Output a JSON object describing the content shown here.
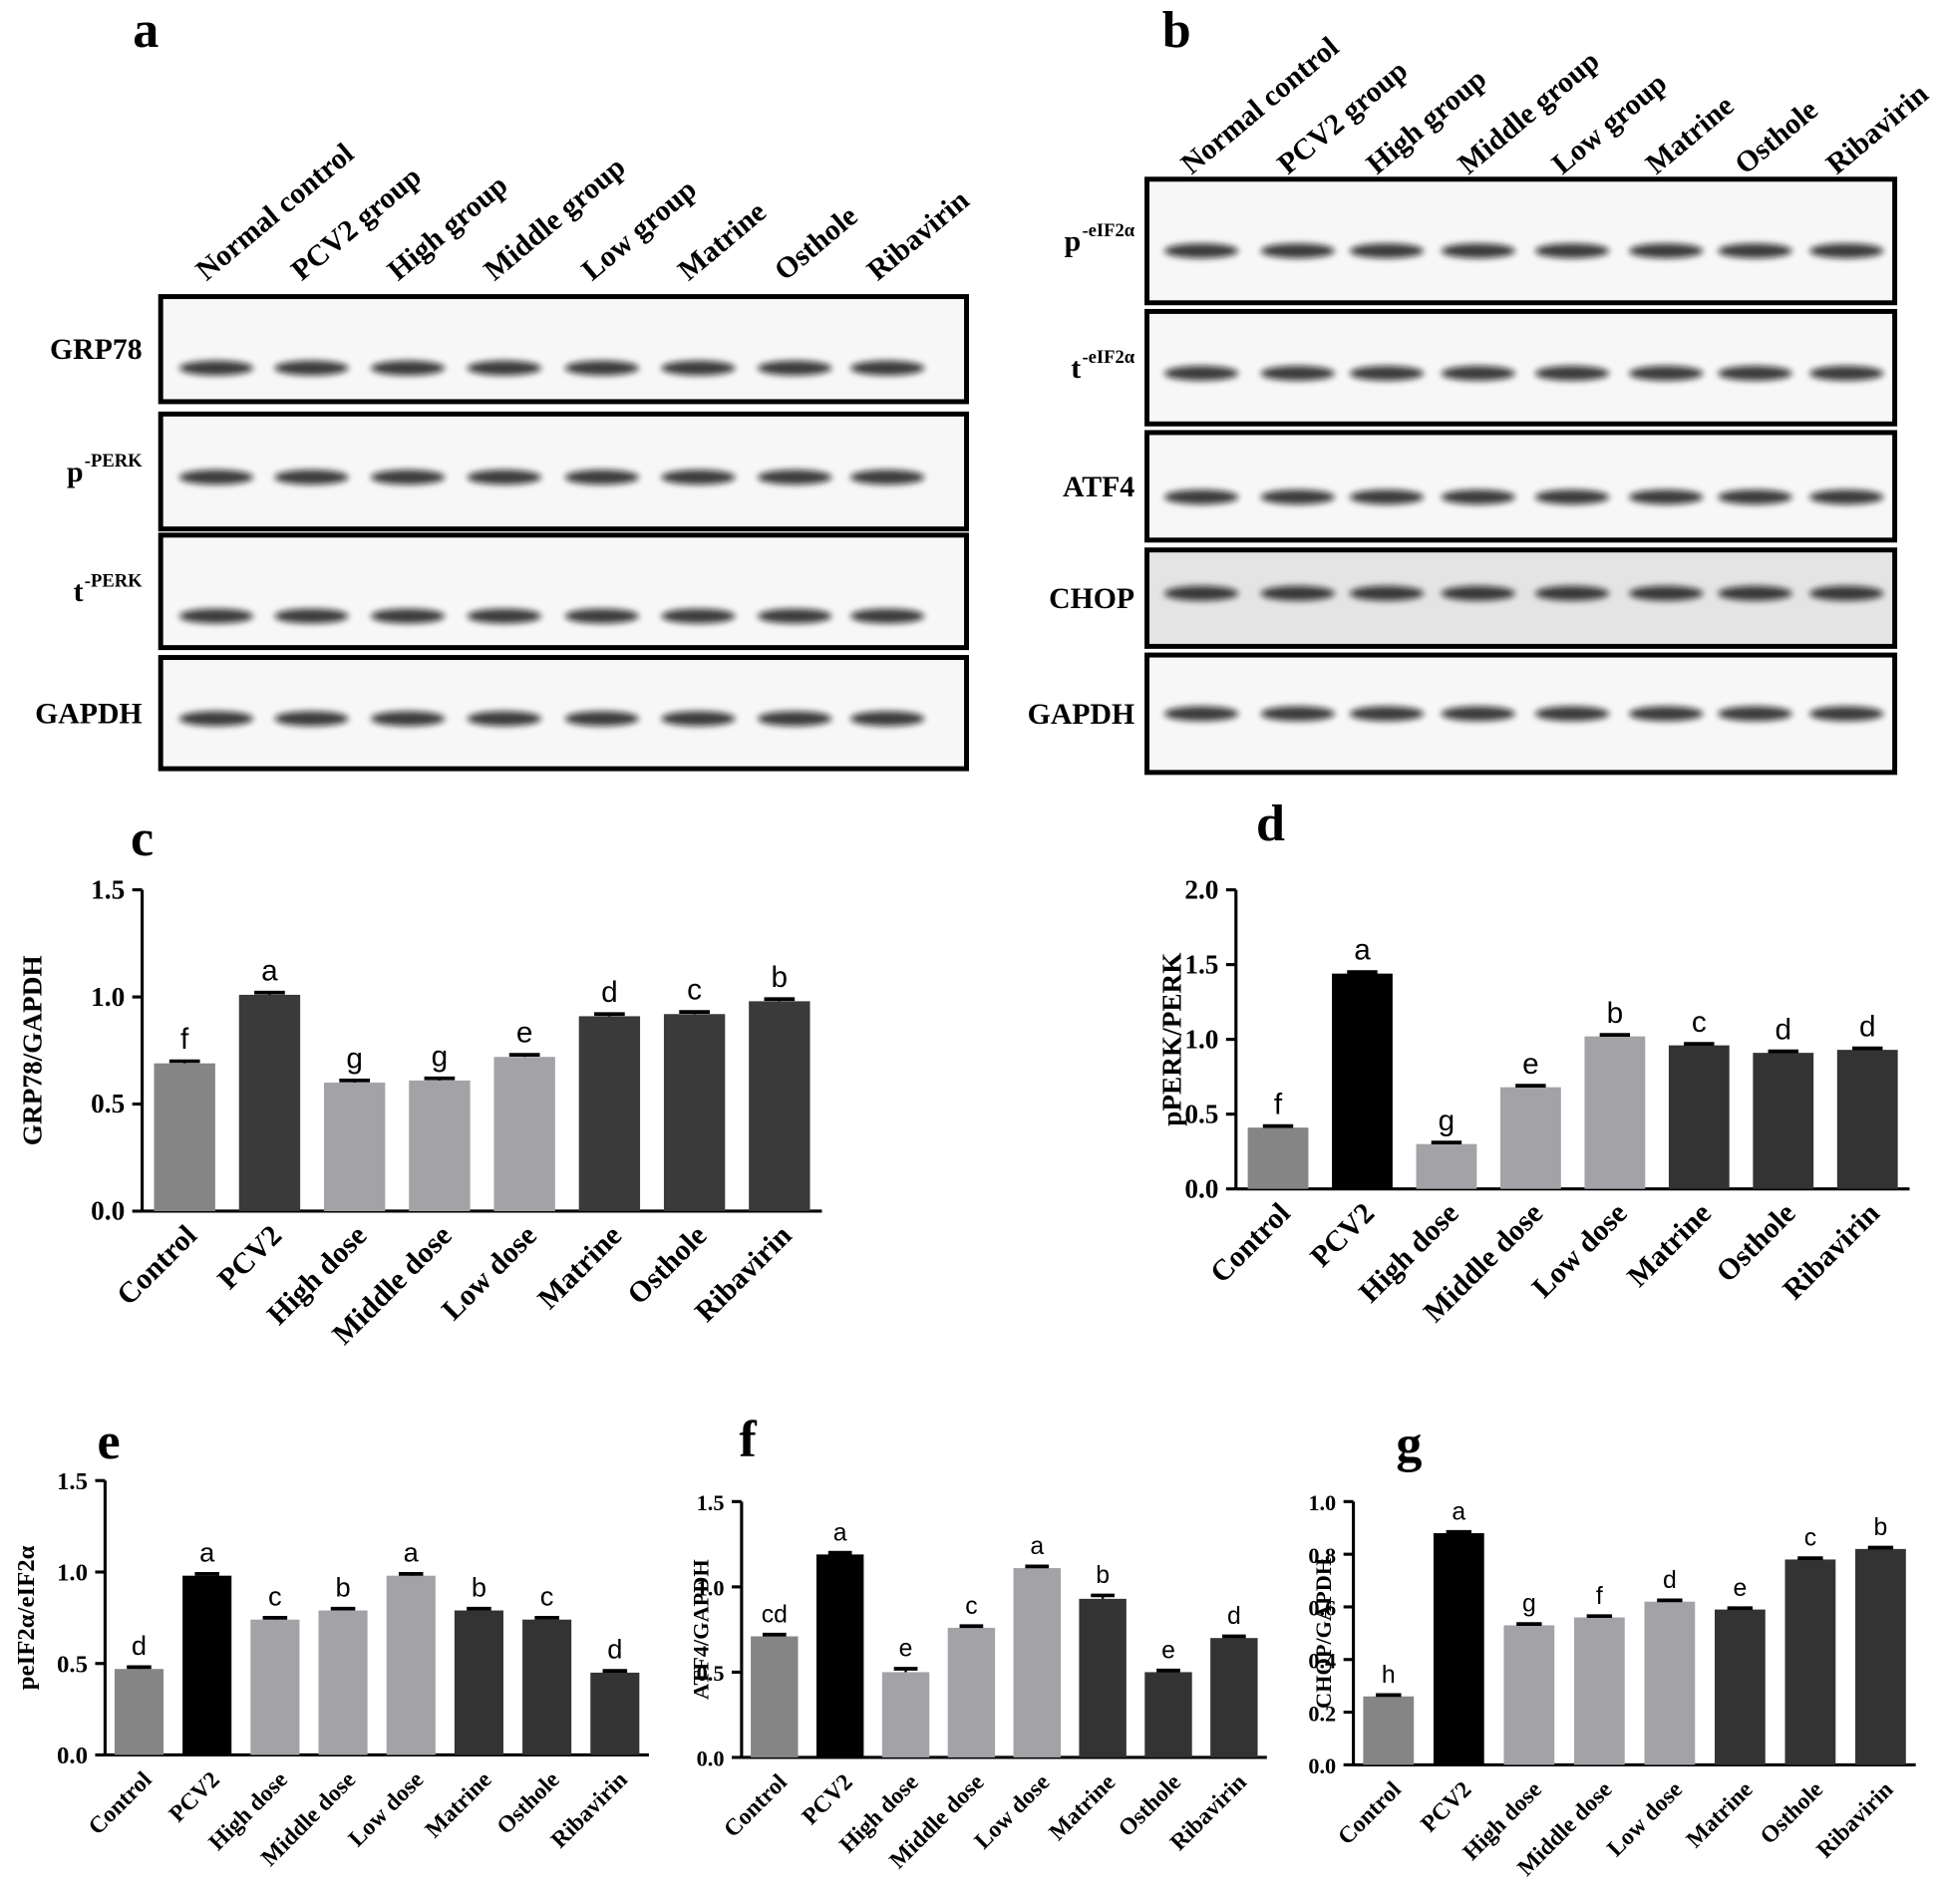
{
  "blots": [
    {
      "panel": "a",
      "lanes": [
        "Normal control",
        "PCV2 group",
        "High group",
        "Middle group",
        "Low group",
        "Matrine",
        "Osthole",
        "Ribavirin"
      ],
      "rows": [
        {
          "label": "GRP78"
        },
        {
          "label": "p",
          "sup": "-PERK"
        },
        {
          "label": "t",
          "sup": "-PERK"
        },
        {
          "label": "GAPDH"
        }
      ]
    },
    {
      "panel": "b",
      "lanes": [
        "Normal control",
        "PCV2 group",
        "High group",
        "Middle group",
        "Low group",
        "Matrine",
        "Osthole",
        "Ribavirin"
      ],
      "rows": [
        {
          "label": "p",
          "sup": "-eIF2α"
        },
        {
          "label": "t",
          "sup": "-eIF2α"
        },
        {
          "label": "ATF4"
        },
        {
          "label": "CHOP"
        },
        {
          "label": "GAPDH"
        }
      ]
    }
  ],
  "chart_data": [
    {
      "type": "bar",
      "panel": "c",
      "ylabel": "GRP78/GAPDH",
      "categories": [
        "Control",
        "PCV2",
        "High dose",
        "Middle dose",
        "Low dose",
        "Matrine",
        "Osthole",
        "Ribavirin"
      ],
      "values": [
        0.69,
        1.01,
        0.6,
        0.61,
        0.72,
        0.91,
        0.92,
        0.98
      ],
      "errors": [
        0.01,
        0.01,
        0.01,
        0.01,
        0.01,
        0.01,
        0.01,
        0.01
      ],
      "annotations": [
        "f",
        "a",
        "g",
        "g",
        "e",
        "d",
        "c",
        "b"
      ],
      "colors": [
        "#858585",
        "#3a3a3a",
        "#a3a3a7",
        "#a3a3a7",
        "#a3a3a7",
        "#3a3a3a",
        "#3a3a3a",
        "#3a3a3a"
      ],
      "ylim": [
        0,
        1.5
      ],
      "yticks": [
        {
          "value": 0,
          "label": "0.0"
        },
        0.5,
        {
          "value": 1,
          "label": "1.0"
        },
        1.5
      ]
    },
    {
      "type": "bar",
      "panel": "d",
      "ylabel": "pPERK/PERK",
      "categories": [
        "Control",
        "PCV2",
        "High dose",
        "Middle dose",
        "Low dose",
        "Matrine",
        "Osthole",
        "Ribavirin"
      ],
      "values": [
        0.41,
        1.44,
        0.3,
        0.68,
        1.02,
        0.96,
        0.91,
        0.93
      ],
      "errors": [
        0.01,
        0.01,
        0.01,
        0.01,
        0.01,
        0.01,
        0.01,
        0.01
      ],
      "annotations": [
        "f",
        "a",
        "g",
        "e",
        "b",
        "c",
        "d",
        "d"
      ],
      "colors": [
        "#858585",
        "#000000",
        "#a3a3a7",
        "#a3a3a7",
        "#a3a3a7",
        "#333333",
        "#333333",
        "#333333"
      ],
      "ylim": [
        0,
        2
      ],
      "yticks": [
        {
          "value": 0,
          "label": "0.0"
        },
        0.5,
        {
          "value": 1,
          "label": "1.0"
        },
        1.5,
        {
          "value": 2,
          "label": "2.0"
        }
      ]
    },
    {
      "type": "bar",
      "panel": "e",
      "ylabel": "peIF2α/eIF2α",
      "categories": [
        "Control",
        "PCV2",
        "High dose",
        "Middle dose",
        "Low dose",
        "Matrine",
        "Osthole",
        "Ribavirin"
      ],
      "values": [
        0.47,
        0.98,
        0.74,
        0.79,
        0.98,
        0.79,
        0.74,
        0.45
      ],
      "errors": [
        0.01,
        0.01,
        0.01,
        0.01,
        0.01,
        0.01,
        0.01,
        0.01
      ],
      "annotations": [
        "d",
        "a",
        "c",
        "b",
        "a",
        "b",
        "c",
        "d"
      ],
      "colors": [
        "#858585",
        "#000000",
        "#a3a3a7",
        "#a3a3a7",
        "#a3a3a7",
        "#333333",
        "#333333",
        "#333333"
      ],
      "ylim": [
        0,
        1.5
      ],
      "yticks": [
        {
          "value": 0,
          "label": "0.0"
        },
        0.5,
        {
          "value": 1,
          "label": "1.0"
        },
        1.5
      ]
    },
    {
      "type": "bar",
      "panel": "f",
      "ylabel": "ATF4/GAPDH",
      "categories": [
        "Control",
        "PCV2",
        "High dose",
        "Middle dose",
        "Low dose",
        "Matrine",
        "Osthole",
        "Ribavirin"
      ],
      "values": [
        0.71,
        1.19,
        0.5,
        0.76,
        1.11,
        0.93,
        0.5,
        0.7
      ],
      "errors": [
        0.01,
        0.01,
        0.02,
        0.01,
        0.01,
        0.02,
        0.01,
        0.01
      ],
      "annotations": [
        "cd",
        "a",
        "e",
        "c",
        "a",
        "b",
        "e",
        "d"
      ],
      "colors": [
        "#858585",
        "#000000",
        "#a3a3a7",
        "#a3a3a7",
        "#a3a3a7",
        "#333333",
        "#333333",
        "#333333"
      ],
      "ylim": [
        0,
        1.5
      ],
      "yticks": [
        {
          "value": 0,
          "label": "0.0"
        },
        0.5,
        {
          "value": 1,
          "label": "1.0"
        },
        1.5
      ]
    },
    {
      "type": "bar",
      "panel": "g",
      "ylabel": "CHOP/GAPDH",
      "categories": [
        "Control",
        "PCV2",
        "High dose",
        "Middle dose",
        "Low dose",
        "Matrine",
        "Osthole",
        "Ribavirin"
      ],
      "values": [
        0.26,
        0.88,
        0.53,
        0.56,
        0.62,
        0.59,
        0.78,
        0.82
      ],
      "errors": [
        0.005,
        0.005,
        0.005,
        0.005,
        0.005,
        0.005,
        0.005,
        0.005
      ],
      "annotations": [
        "h",
        "a",
        "g",
        "f",
        "d",
        "e",
        "c",
        "b"
      ],
      "colors": [
        "#858585",
        "#000000",
        "#a3a3a7",
        "#a3a3a7",
        "#a3a3a7",
        "#333333",
        "#333333",
        "#333333"
      ],
      "ylim": [
        0,
        1
      ],
      "yticks": [
        {
          "value": 0,
          "label": "0.0"
        },
        0.2,
        0.4,
        0.6,
        0.8,
        {
          "value": 1,
          "label": "1.0"
        }
      ]
    }
  ]
}
